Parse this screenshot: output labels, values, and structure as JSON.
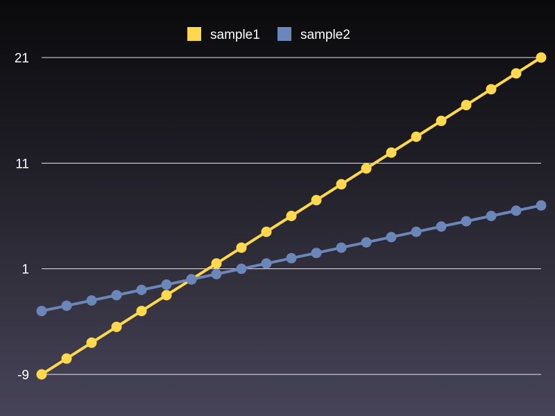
{
  "chart_data": {
    "type": "line",
    "title": "",
    "xlabel": "",
    "ylabel": "",
    "ylim": [
      -9,
      21
    ],
    "yticks": [
      -9,
      1,
      11,
      21
    ],
    "grid": true,
    "legend_position": "top-center",
    "x": [
      0,
      1,
      2,
      3,
      4,
      5,
      6,
      7,
      8,
      9,
      10,
      11,
      12,
      13,
      14,
      15,
      16,
      17,
      18,
      19,
      20
    ],
    "series": [
      {
        "name": "sample1",
        "color": "#ffd84d",
        "values": [
          -9,
          -7.5,
          -6,
          -4.5,
          -3,
          -1.5,
          0,
          1.5,
          3,
          4.5,
          6,
          7.5,
          9,
          10.5,
          12,
          13.5,
          15,
          16.5,
          18,
          19.5,
          21
        ]
      },
      {
        "name": "sample2",
        "color": "#6b86b8",
        "values": [
          -3,
          -2.5,
          -2,
          -1.5,
          -1,
          -0.5,
          0,
          0.5,
          1,
          1.5,
          2,
          2.5,
          3,
          3.5,
          4,
          4.5,
          5,
          5.5,
          6,
          6.5,
          7
        ]
      }
    ]
  }
}
